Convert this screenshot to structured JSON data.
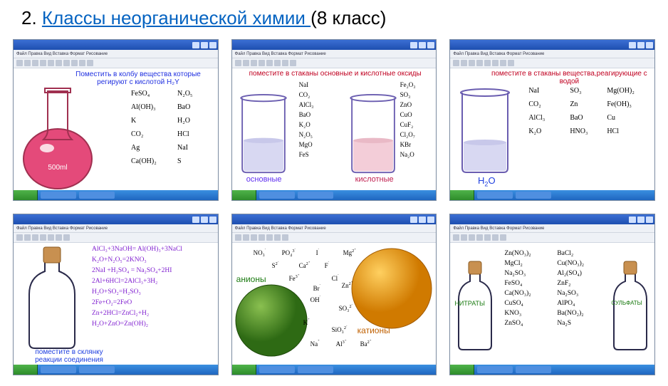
{
  "title": {
    "num": "2. ",
    "link": "Классы неорганической химии ",
    "suffix": "(8 класс)"
  },
  "menubar_text": "Файл  Правка  Вид  Вставка  Формат  Рисование",
  "panels": {
    "p1": {
      "instruction": "Поместить в колбу вещества которые\nрегируют с кислотой H₂Y",
      "col1": [
        "FeSO₄",
        "Al(OH)₃",
        "K",
        "CO₂",
        "Ag",
        "Ca(OH)₂"
      ],
      "col2": [
        "N₂O₅",
        "BaO",
        "H₂O",
        "HCl",
        "NaI",
        "S"
      ],
      "flask_color": "#e44a7a",
      "flask_label": "500ml"
    },
    "p2": {
      "instruction": "поместите в стаканы основные и кислотные оксиды",
      "col1": [
        "NaI",
        "CO₂",
        "AlCl₃",
        "BaO",
        "K₂O",
        "N₂O₅",
        "MgO",
        "FeS"
      ],
      "col2": [
        "Fe₂O₃",
        "SO₃",
        "ZnO",
        "CuO",
        "CuF₂",
        "Cl₂O₇",
        "KBr",
        "Na₂O"
      ],
      "left_beaker_color": "#d8d8f2",
      "right_beaker_color": "#f3cdd8",
      "left_label": "основные",
      "right_label": "кислотные"
    },
    "p3": {
      "instruction": "поместите в стаканы вещества,реагирующие с водой",
      "col1": [
        "NaI",
        "CO₂",
        "AlCl₃",
        "K₂O"
      ],
      "col2": [
        "SO₃",
        "Zn",
        "BaO",
        "HNO₃"
      ],
      "col3": [
        "Mg(OH)₂",
        "Fe(OH)₃",
        "Cu",
        "HCl"
      ],
      "beaker_color": "#d8d8f2",
      "label": "H₂O"
    },
    "p4": {
      "equations": [
        "AlCl₃+3NaOH= Al(OH)₃+3NaCl",
        "K₂O+N₂O₅=2KNO₃",
        "2NaI +H₂SO₄ = Na₂SO₄+2HI",
        "2Al+6HCl=2AlCl₃+3H₂",
        "H₂O+SO₂=H₂SO₃",
        "2Fe+O₂=2FeO",
        "Zn+2HCl=ZnCl₂+H₂",
        "H₂O+ZnO=Zn(OН)₂"
      ],
      "bottom": "поместите в склянку\nреакции соединения"
    },
    "p5": {
      "ions": [
        "NO₃⁻",
        "PO₄³⁻",
        "I⁻",
        "Mg²⁺",
        "S²⁻",
        "Ca²⁺",
        "F⁻",
        "Fe³⁺",
        "Cl⁻",
        "Br⁻",
        "Zn²⁺",
        "OH⁻",
        "SO₃²⁻",
        "K⁺",
        "SiO₃²⁻",
        "Na⁺",
        "Al³⁺",
        "Ba²⁺"
      ],
      "anion_label": "анионы",
      "cation_label": "катионы",
      "anion_color": "#4a8a2a",
      "cation_color": "#f0a020"
    },
    "p6": {
      "col1": [
        "Zn(NO₃)₂",
        "MgCl₂",
        "Na₂SO₃",
        "FeSO₄",
        "Ca(NO₃)₂",
        "CuSO₄",
        "KNO₃",
        "ZnSO₄"
      ],
      "col2": [
        "BaCl₂",
        "Cu(NO₃)₂",
        "Al₂(SO₄)",
        "ZnF₂",
        "Na₂SO₃",
        "AlPO₄",
        "Ba(NO₂)₂",
        "Na₂S"
      ],
      "left_label": "НИТРАТЫ",
      "right_label": "СУЛЬФАТЫ"
    }
  }
}
